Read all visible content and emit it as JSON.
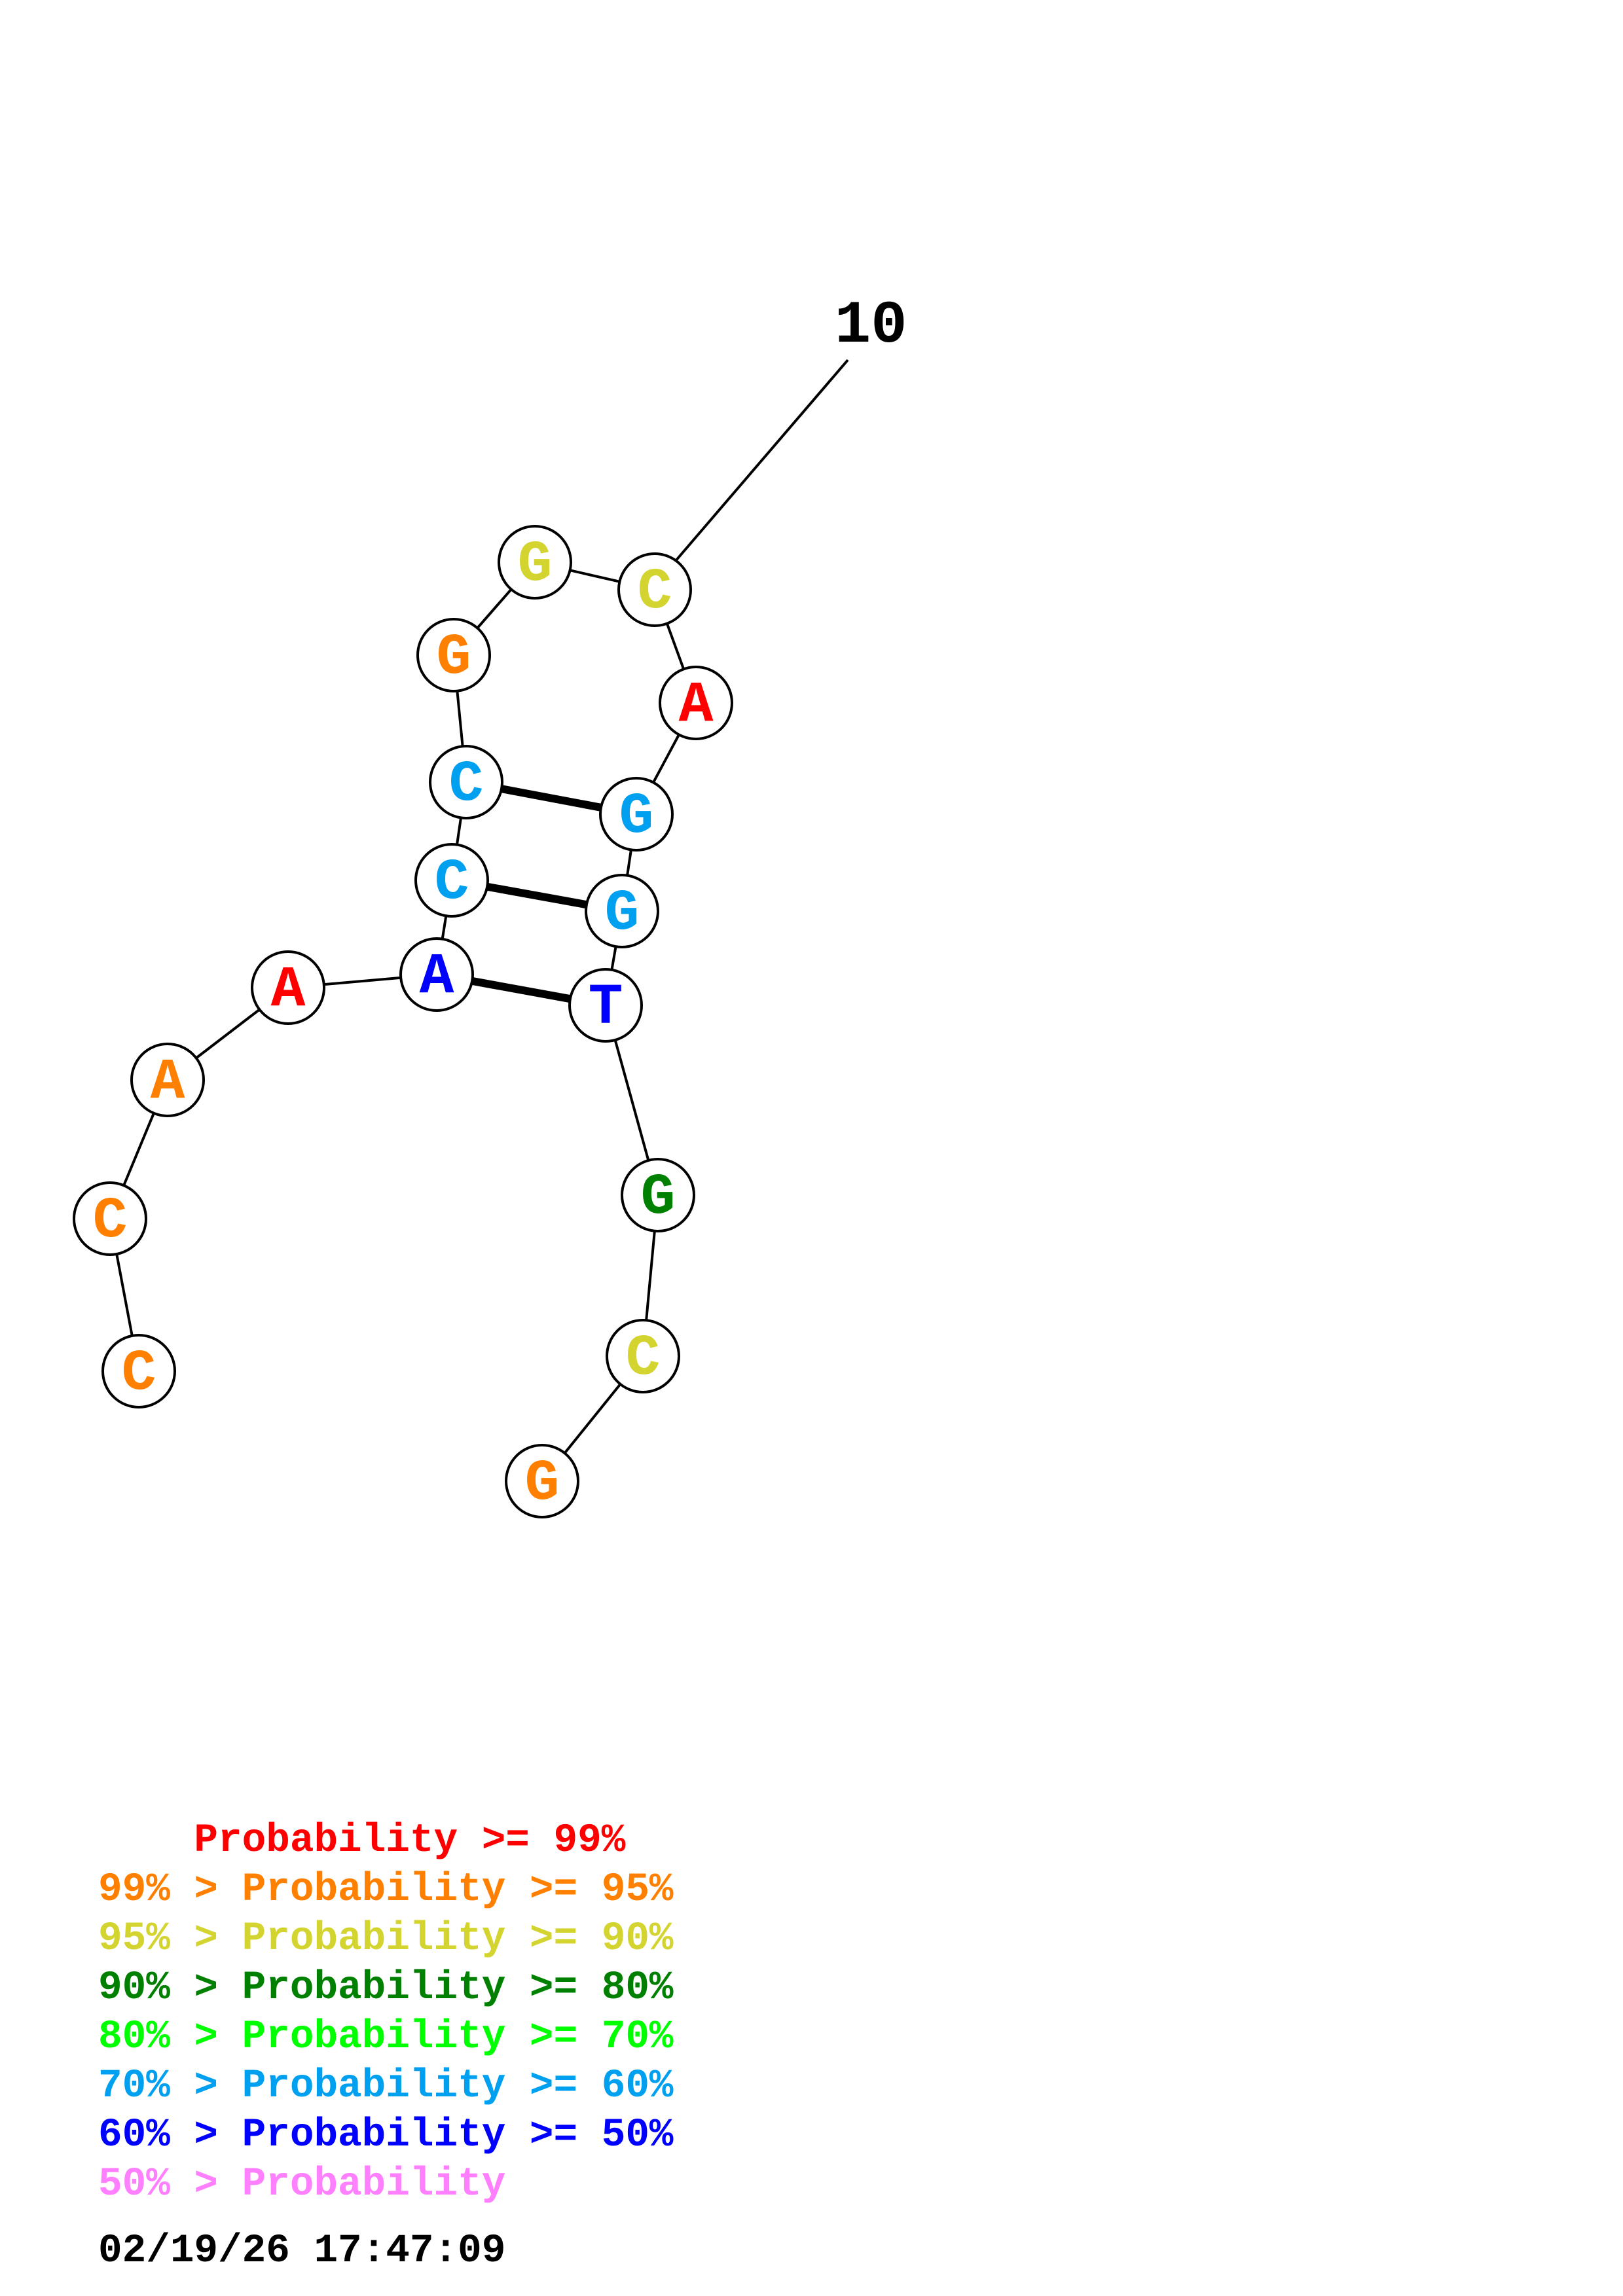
{
  "sequence_label": "10",
  "colors": {
    "p99": "#ff0000",
    "p95": "#ff8000",
    "p90": "#d4d430",
    "p80": "#008000",
    "p70": "#00ff00",
    "p60": "#00a0f0",
    "p50": "#0000ff",
    "plt50": "#ff80ff"
  },
  "nucleotides": [
    {
      "base": "C",
      "prob": "p95"
    },
    {
      "base": "C",
      "prob": "p95"
    },
    {
      "base": "A",
      "prob": "p95"
    },
    {
      "base": "A",
      "prob": "p99"
    },
    {
      "base": "A",
      "prob": "p50"
    },
    {
      "base": "C",
      "prob": "p60"
    },
    {
      "base": "C",
      "prob": "p60"
    },
    {
      "base": "G",
      "prob": "p95"
    },
    {
      "base": "G",
      "prob": "p90"
    },
    {
      "base": "C",
      "prob": "p90"
    },
    {
      "base": "A",
      "prob": "p99"
    },
    {
      "base": "G",
      "prob": "p60"
    },
    {
      "base": "G",
      "prob": "p60"
    },
    {
      "base": "T",
      "prob": "p50"
    },
    {
      "base": "G",
      "prob": "p80"
    },
    {
      "base": "C",
      "prob": "p90"
    },
    {
      "base": "G",
      "prob": "p95"
    }
  ],
  "pairs": [
    [
      4,
      13
    ],
    [
      5,
      12
    ],
    [
      6,
      11
    ]
  ],
  "legend": [
    {
      "text": "    Probability >= 99%",
      "prob": "p99"
    },
    {
      "text": "99% > Probability >= 95%",
      "prob": "p95"
    },
    {
      "text": "95% > Probability >= 90%",
      "prob": "p90"
    },
    {
      "text": "90% > Probability >= 80%",
      "prob": "p80"
    },
    {
      "text": "80% > Probability >= 70%",
      "prob": "p70"
    },
    {
      "text": "70% > Probability >= 60%",
      "prob": "p60"
    },
    {
      "text": "60% > Probability >= 50%",
      "prob": "p50"
    },
    {
      "text": "50% > Probability",
      "prob": "plt50"
    }
  ],
  "timestamp": "02/19/26 17:47:09"
}
